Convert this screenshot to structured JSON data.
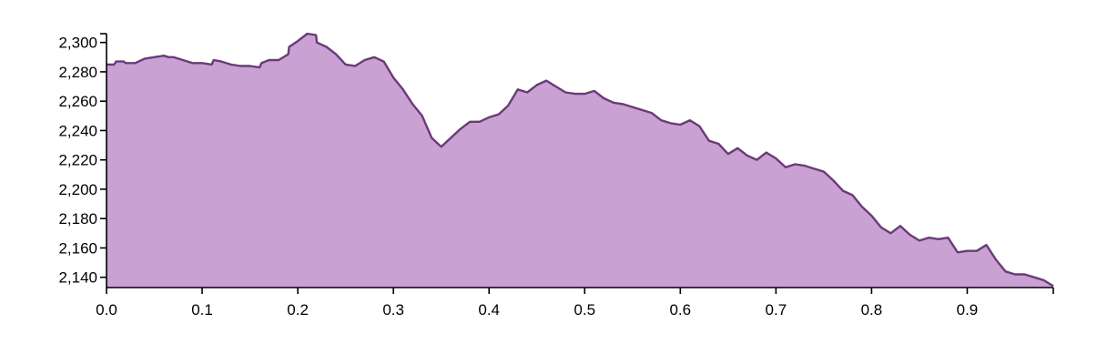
{
  "chart_data": {
    "type": "area",
    "title": "",
    "xlabel": "",
    "ylabel": "",
    "xlim": [
      0,
      0.99
    ],
    "ylim": [
      2133,
      2306
    ],
    "grid": false,
    "legend": "none",
    "colors": {
      "fill": "#c9a1d2",
      "stroke": "#6b3a79"
    },
    "x_ticks": [
      0.0,
      0.1,
      0.2,
      0.3,
      0.4,
      0.5,
      0.6,
      0.7,
      0.8,
      0.9
    ],
    "x_tick_labels": [
      "0.0",
      "0.1",
      "0.2",
      "0.3",
      "0.4",
      "0.5",
      "0.6",
      "0.7",
      "0.8",
      "0.9"
    ],
    "y_ticks": [
      2140,
      2160,
      2180,
      2200,
      2220,
      2240,
      2260,
      2280,
      2300
    ],
    "y_tick_labels": [
      "2,140",
      "2,160",
      "2,180",
      "2,200",
      "2,220",
      "2,240",
      "2,260",
      "2,280",
      "2,300"
    ],
    "series": [
      {
        "x": [
          0,
          0.008,
          0.01,
          0.018,
          0.02,
          0.03,
          0.04,
          0.05,
          0.06,
          0.065,
          0.07,
          0.08,
          0.09,
          0.1,
          0.11,
          0.112,
          0.12,
          0.13,
          0.14,
          0.15,
          0.16,
          0.162,
          0.17,
          0.18,
          0.19,
          0.191,
          0.2,
          0.21,
          0.219,
          0.22,
          0.23,
          0.24,
          0.25,
          0.26,
          0.27,
          0.28,
          0.29,
          0.3,
          0.31,
          0.32,
          0.33,
          0.34,
          0.35,
          0.36,
          0.37,
          0.38,
          0.39,
          0.4,
          0.41,
          0.42,
          0.43,
          0.44,
          0.45,
          0.46,
          0.47,
          0.48,
          0.49,
          0.5,
          0.51,
          0.52,
          0.53,
          0.54,
          0.55,
          0.56,
          0.57,
          0.58,
          0.59,
          0.6,
          0.61,
          0.62,
          0.63,
          0.64,
          0.65,
          0.66,
          0.67,
          0.68,
          0.69,
          0.7,
          0.71,
          0.72,
          0.73,
          0.74,
          0.75,
          0.76,
          0.77,
          0.78,
          0.79,
          0.8,
          0.81,
          0.82,
          0.83,
          0.84,
          0.85,
          0.86,
          0.87,
          0.88,
          0.89,
          0.9,
          0.91,
          0.92,
          0.93,
          0.94,
          0.95,
          0.96,
          0.97,
          0.98,
          0.99
        ],
        "y": [
          2285,
          2285,
          2287,
          2287,
          2286,
          2286,
          2289,
          2290,
          2291,
          2290,
          2290,
          2288,
          2286,
          2286,
          2285,
          2288,
          2287,
          2285,
          2284,
          2284,
          2283,
          2286,
          2288,
          2288,
          2292,
          2297,
          2301,
          2306,
          2305,
          2300,
          2297,
          2292,
          2285,
          2284,
          2288,
          2290,
          2287,
          2276,
          2268,
          2258,
          2250,
          2235,
          2229,
          2235,
          2241,
          2246,
          2246,
          2249,
          2251,
          2257,
          2268,
          2266,
          2271,
          2274,
          2270,
          2266,
          2265,
          2265,
          2267,
          2262,
          2259,
          2258,
          2256,
          2254,
          2252,
          2247,
          2245,
          2244,
          2247,
          2243,
          2233,
          2231,
          2224,
          2228,
          2223,
          2220,
          2225,
          2221,
          2215,
          2217,
          2216,
          2214,
          2212,
          2206,
          2199,
          2196,
          2188,
          2182,
          2174,
          2170,
          2175,
          2169,
          2165,
          2167,
          2166,
          2167,
          2157,
          2158,
          2158,
          2162,
          2152,
          2144,
          2142,
          2142,
          2140,
          2138,
          2134
        ]
      }
    ]
  }
}
